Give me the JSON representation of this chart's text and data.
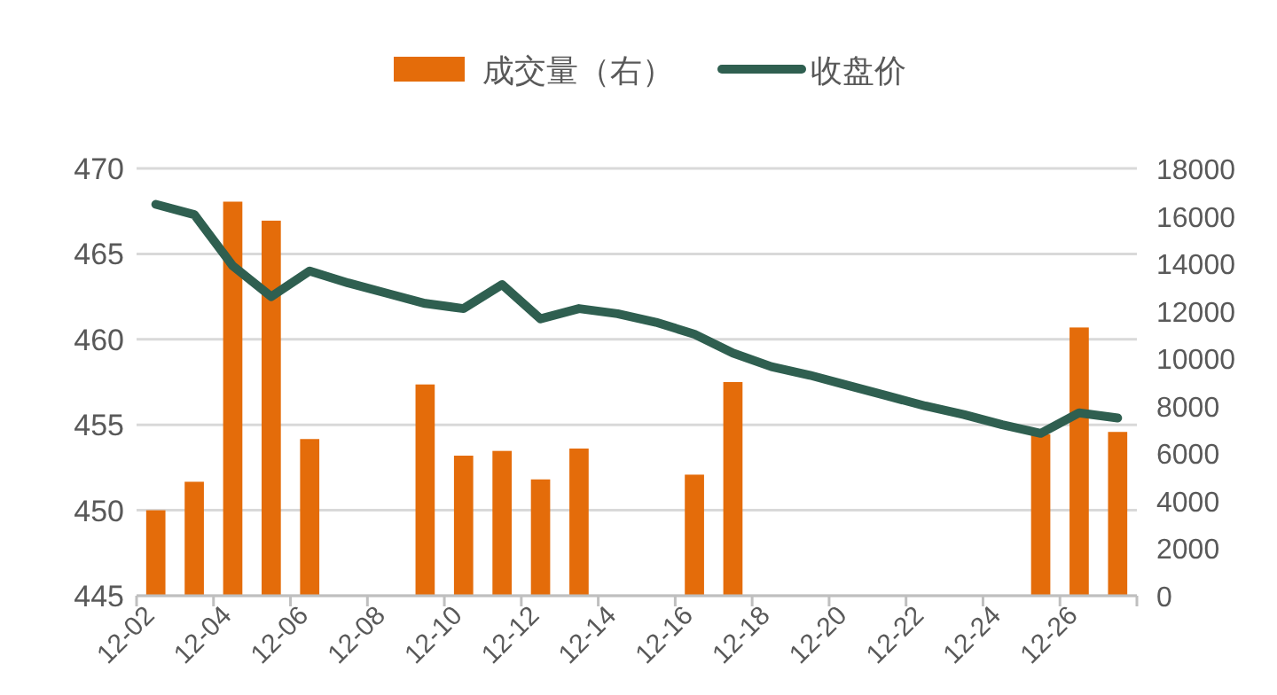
{
  "chart_data": {
    "type": "bar",
    "categories": [
      "12-02",
      null,
      "12-04",
      null,
      "12-06",
      null,
      "12-08",
      null,
      "12-10",
      null,
      "12-12",
      null,
      "12-14",
      null,
      "12-16",
      null,
      "12-18",
      null,
      "12-20",
      null,
      "12-22",
      null,
      "12-24",
      null,
      "12-26",
      null
    ],
    "series": [
      {
        "name": "成交量（右）",
        "axis": "y2",
        "color": "#e46c0a",
        "values": [
          3600,
          4800,
          16600,
          15800,
          6600,
          null,
          null,
          8900,
          5900,
          6100,
          4900,
          6200,
          null,
          null,
          5100,
          9000,
          null,
          null,
          null,
          null,
          null,
          null,
          null,
          6800,
          11300,
          6900
        ]
      },
      {
        "name": "收盘价",
        "type": "line",
        "color": "#2f5f50",
        "values": [
          467.9,
          467.3,
          464.3,
          462.5,
          464.0,
          463.3,
          462.7,
          462.1,
          461.8,
          463.2,
          461.2,
          461.8,
          461.5,
          461.0,
          460.3,
          459.2,
          458.4,
          457.9,
          457.3,
          456.7,
          456.1,
          455.6,
          455.0,
          454.5,
          455.7,
          455.4
        ]
      }
    ],
    "ylim": [
      445,
      470
    ],
    "yticks": [
      445,
      450,
      455,
      460,
      465,
      470
    ],
    "y2lim": [
      0,
      18000
    ],
    "y2ticks": [
      0,
      2000,
      4000,
      6000,
      8000,
      10000,
      12000,
      14000,
      16000,
      18000
    ],
    "grid": "y",
    "legend": "top"
  }
}
